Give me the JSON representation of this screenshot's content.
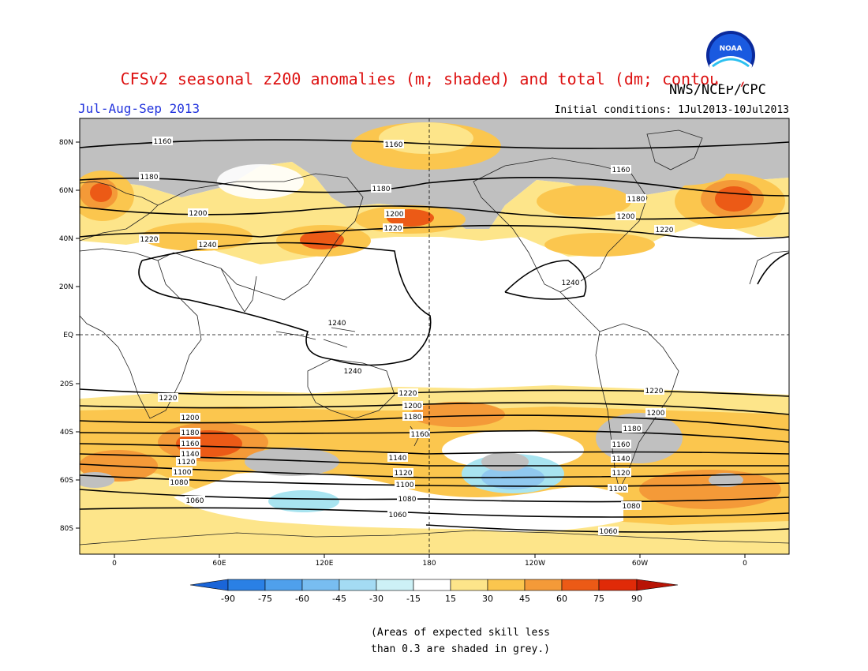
{
  "header": {
    "title": "CFSv2 seasonal z200 anomalies (m; shaded) and total (dm; contours)",
    "period": "Jul-Aug-Sep 2013",
    "org": "NWS/NCEP/CPC",
    "init": "Initial conditions: 1Jul2013-10Jul2013",
    "logo_text": "NOAA"
  },
  "map": {
    "lat_labels": [
      "80N",
      "60N",
      "40N",
      "20N",
      "EQ",
      "20S",
      "40S",
      "60S",
      "80S"
    ],
    "lon_labels": [
      "0",
      "60E",
      "120E",
      "180",
      "120W",
      "60W",
      "0"
    ],
    "contour_levels": [
      {
        "value": "1160",
        "label": "1160"
      },
      {
        "value": "1180",
        "label": "1180"
      },
      {
        "value": "1200",
        "label": "1200"
      },
      {
        "value": "1220",
        "label": "1220"
      },
      {
        "value": "1240",
        "label": "1240"
      },
      {
        "value": "1060",
        "label": "1060"
      },
      {
        "value": "1080",
        "label": "1080"
      },
      {
        "value": "1100",
        "label": "1100"
      },
      {
        "value": "1120",
        "label": "1120"
      },
      {
        "value": "1140",
        "label": "1140"
      }
    ],
    "colors": {
      "grey": "#c0c0c0",
      "y15": "#fde58a",
      "y30": "#fbc64e",
      "o45": "#f49a38",
      "o60": "#ec5a16",
      "b30": "#a8e4f0",
      "b45": "#90c8ef"
    }
  },
  "colorbar": {
    "ticks": [
      "-90",
      "-75",
      "-60",
      "-45",
      "-30",
      "-15",
      "15",
      "30",
      "45",
      "60",
      "75",
      "90"
    ],
    "colors": [
      "#1a65d8",
      "#2a80e5",
      "#4fa0ec",
      "#78bdf1",
      "#a4dbf3",
      "#cdf1f6",
      "#ffffff",
      "#fde58a",
      "#fbc64e",
      "#f49a38",
      "#ec5a16",
      "#e02a08",
      "#b81405"
    ]
  },
  "note": {
    "line1": "(Areas of expected skill less",
    "line2": "than 0.3 are shaded in grey.)"
  }
}
